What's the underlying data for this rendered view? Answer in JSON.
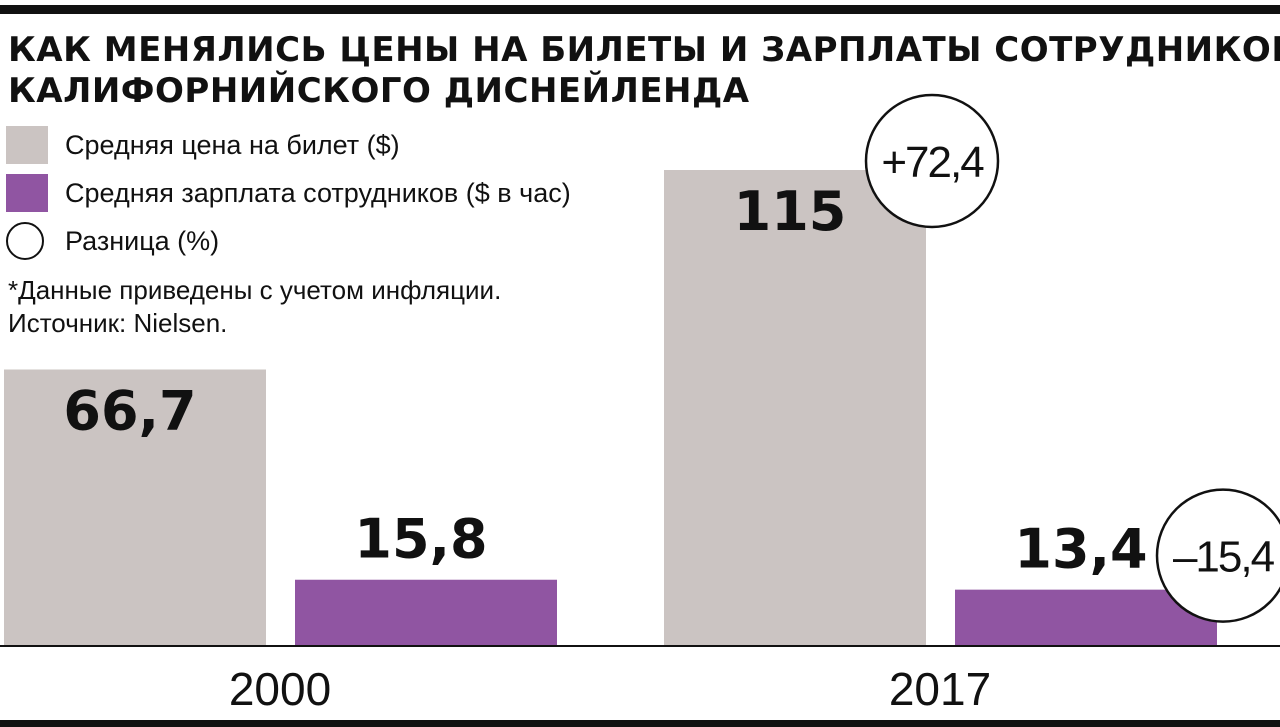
{
  "title_lines": [
    "КАК МЕНЯЛИСЬ ЦЕНЫ НА БИЛЕТЫ И ЗАРПЛАТЫ СОТРУДНИКОВ",
    "КАЛИФОРНИЙСКОГО ДИСНЕЙЛЕНДА"
  ],
  "legend": [
    {
      "label": "Средняя цена на билет ($)",
      "shape": "square",
      "color": "#cbc4c2"
    },
    {
      "label": "Средняя зарплата сотрудников ($ в час)",
      "shape": "square",
      "color": "#9055a2"
    },
    {
      "label": "Разница (%)",
      "shape": "circle",
      "color": "#ffffff"
    }
  ],
  "notes": [
    "*Данные приведены с учетом инфляции.",
    "Источник: Nielsen."
  ],
  "chart_data": {
    "type": "bar",
    "categories": [
      "2000",
      "2017"
    ],
    "series": [
      {
        "name": "Средняя цена на билет ($)",
        "color": "#cbc4c2",
        "values": [
          66.7,
          115
        ],
        "labels": [
          "66,7",
          "115"
        ]
      },
      {
        "name": "Средняя зарплата сотрудников ($ в час)",
        "color": "#9055a2",
        "values": [
          15.8,
          13.4
        ],
        "labels": [
          "15,8",
          "13,4"
        ]
      }
    ],
    "differences": [
      {
        "series": "Средняя цена на билет ($)",
        "category": "2017",
        "value": 72.4,
        "label": "+72,4"
      },
      {
        "series": "Средняя зарплата сотрудников ($ в час)",
        "category": "2017",
        "value": -15.4,
        "label": "–15,4"
      }
    ],
    "ylim": [
      0,
      115
    ],
    "grid": false,
    "legend_position": "top-left"
  }
}
